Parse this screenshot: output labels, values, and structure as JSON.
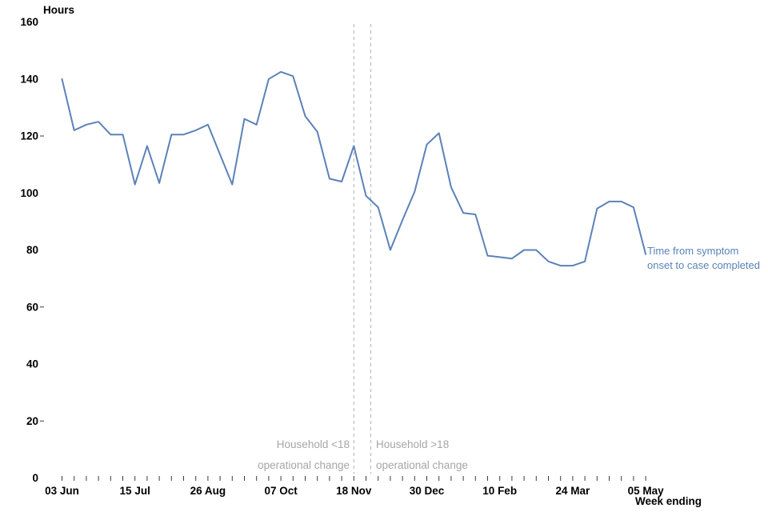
{
  "colors": {
    "line": "#5b82b8",
    "annotation_text": "#a6a6a6",
    "event_line": "#b0b0b0",
    "axis_text": "#000000",
    "tick_mark": "#3a3a3a"
  },
  "chart_data": {
    "type": "line",
    "title": "",
    "ylabel": "Hours",
    "xlabel": "Week ending",
    "ylim": [
      0,
      160
    ],
    "grid": false,
    "y_ticks": [
      0,
      20,
      40,
      60,
      80,
      100,
      120,
      140,
      160
    ],
    "y_tick_marks_visible": [
      20,
      60,
      120
    ],
    "n_weeks": 49,
    "x_label_every_n_weeks": 6,
    "x_tick_labels": [
      "03 Jun",
      "15 Jul",
      "26 Aug",
      "07 Oct",
      "18 Nov",
      "30 Dec",
      "10 Feb",
      "24 Mar",
      "05 May"
    ],
    "series": [
      {
        "name": "Time from symptom onset to case completed",
        "label_lines": [
          "Time from symptom",
          "onset to case completed"
        ],
        "values": [
          140,
          122,
          124,
          125,
          120.5,
          120.5,
          103,
          116.5,
          103.5,
          120.5,
          120.5,
          122,
          124,
          113.5,
          103,
          126,
          124,
          140,
          142.5,
          141,
          127,
          121.5,
          105,
          104,
          116.5,
          99,
          95,
          80,
          90.5,
          100.5,
          117,
          121,
          102,
          93,
          92.5,
          78,
          77.5,
          77,
          80,
          80,
          76,
          74.5,
          74.5,
          76,
          94.5,
          97,
          97,
          95,
          78.5
        ]
      }
    ],
    "vlines": [
      {
        "week": 24,
        "label_lines": [
          "Household <18",
          "operational change"
        ],
        "label_align": "right"
      },
      {
        "week": 25.4,
        "label_lines": [
          "Household >18",
          "operational change"
        ],
        "label_align": "left"
      }
    ],
    "legend_position": "right-of-line-end"
  }
}
